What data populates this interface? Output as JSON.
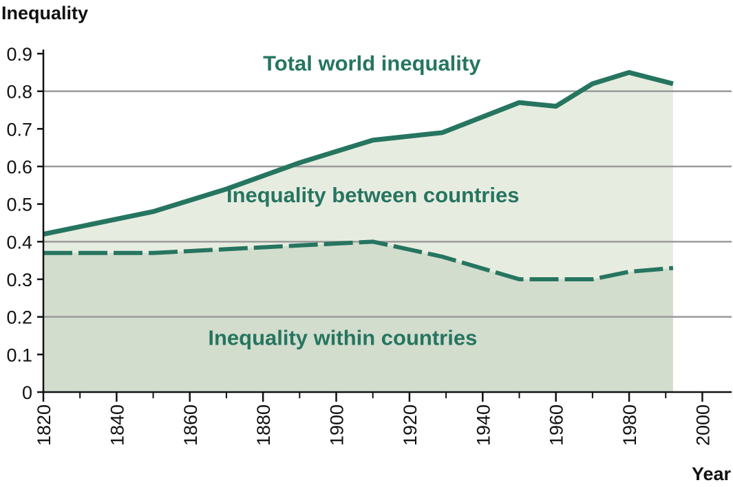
{
  "chart_data": {
    "type": "area",
    "ylabel": "Inequality",
    "xlabel": "Year",
    "xlim": [
      1820,
      2008
    ],
    "ylim": [
      0,
      0.9
    ],
    "x_ticks": [
      1820,
      1840,
      1860,
      1880,
      1900,
      1920,
      1940,
      1960,
      1980,
      2000
    ],
    "x_minor_ticks": [
      1830,
      1850,
      1870,
      1890,
      1910,
      1930,
      1950,
      1970,
      1990
    ],
    "y_ticks": [
      0,
      0.1,
      0.2,
      0.3,
      0.4,
      0.5,
      0.6,
      0.7,
      0.8,
      0.9
    ],
    "y_tick_labels": [
      "0",
      "0.1",
      "0.2",
      "0.3",
      "0.4",
      "0.5",
      "0.6",
      "0.7",
      "0.8",
      "0.9"
    ],
    "gridlines_y": [
      0.2,
      0.4,
      0.6,
      0.8
    ],
    "series": [
      {
        "name": "Total world inequality",
        "style": "solid",
        "x": [
          1820,
          1850,
          1870,
          1890,
          1910,
          1929,
          1950,
          1960,
          1970,
          1980,
          1992
        ],
        "values": [
          0.42,
          0.48,
          0.54,
          0.61,
          0.67,
          0.69,
          0.77,
          0.76,
          0.82,
          0.85,
          0.82
        ]
      },
      {
        "name": "Inequality within countries",
        "style": "dashed",
        "x": [
          1820,
          1850,
          1870,
          1890,
          1910,
          1929,
          1950,
          1960,
          1970,
          1980,
          1992
        ],
        "values": [
          0.37,
          0.37,
          0.38,
          0.39,
          0.4,
          0.36,
          0.3,
          0.3,
          0.3,
          0.32,
          0.33
        ]
      }
    ],
    "annotations": [
      {
        "text": "Total world inequality",
        "x": 1880,
        "y": 0.855
      },
      {
        "text": "Inequality between countries",
        "x": 1870,
        "y": 0.505
      },
      {
        "text": "Inequality within countries",
        "x": 1865,
        "y": 0.125
      }
    ],
    "colors": {
      "line": "#267560",
      "between_fill": "#e7ece1",
      "within_fill": "#d2ddcd",
      "grid": "#9a9a9a",
      "axis": "#111111",
      "text": "#111111"
    }
  }
}
